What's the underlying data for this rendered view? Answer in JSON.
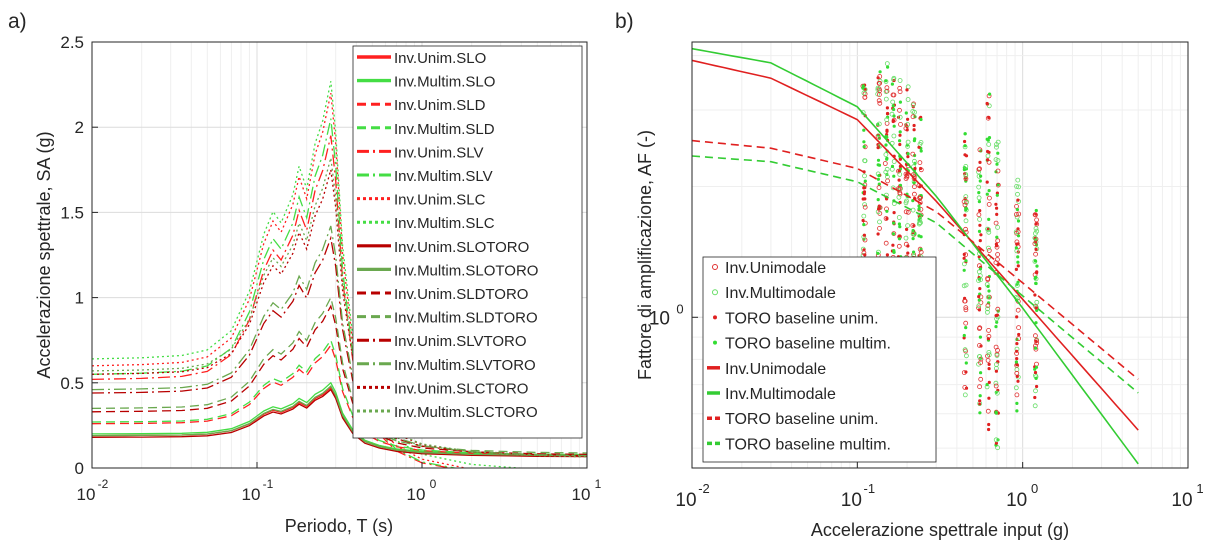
{
  "panel_labels": [
    "a)",
    "b)"
  ],
  "chart_data": [
    {
      "type": "line",
      "xscale": "log",
      "xlim": [
        0.01,
        10
      ],
      "ylim": [
        0,
        2.5
      ],
      "xticks": [
        "10",
        "10",
        "10",
        "10"
      ],
      "xtick_exponents": [
        "-2",
        "-1",
        "0",
        "1"
      ],
      "yticks": [
        "0",
        "0.5",
        "1",
        "1.5",
        "2",
        "2.5"
      ],
      "xlabel": "Periodo, T (s)",
      "ylabel": "Accelerazione spettrale, SA (g)",
      "grid": true,
      "legend_position": "top-right",
      "series": [
        {
          "name": "Inv.Unim.SLO",
          "color": "#ff2020",
          "style": "solid",
          "width": 2.4,
          "pga": 0.19,
          "peak": 0.47
        },
        {
          "name": "Inv.Multim.SLO",
          "color": "#44dd44",
          "style": "solid",
          "width": 2.4,
          "pga": 0.2,
          "peak": 0.5
        },
        {
          "name": "Inv.Unim.SLD",
          "color": "#ff2020",
          "style": "dashed",
          "width": 2.0,
          "pga": 0.26,
          "peak": 0.72
        },
        {
          "name": "Inv.Multim.SLD",
          "color": "#44dd44",
          "style": "dashed",
          "width": 2.0,
          "pga": 0.27,
          "peak": 0.75
        },
        {
          "name": "Inv.Unim.SLV",
          "color": "#ff2020",
          "style": "dashdot",
          "width": 2.0,
          "pga": 0.52,
          "peak": 1.95
        },
        {
          "name": "Inv.Multim.SLV",
          "color": "#44dd44",
          "style": "dashdot",
          "width": 2.0,
          "pga": 0.55,
          "peak": 2.05
        },
        {
          "name": "Inv.Unim.SLC",
          "color": "#ff2020",
          "style": "dotted",
          "width": 2.0,
          "pga": 0.6,
          "peak": 2.2
        },
        {
          "name": "Inv.Multim.SLC",
          "color": "#44dd44",
          "style": "dotted",
          "width": 2.0,
          "pga": 0.64,
          "peak": 2.27
        },
        {
          "name": "Inv.Unim.SLOTORO",
          "color": "#b80000",
          "style": "solid",
          "width": 2.2,
          "pga": 0.18,
          "peak": 0.46
        },
        {
          "name": "Inv.Multim.SLOTORO",
          "color": "#6aa84f",
          "style": "solid",
          "width": 2.2,
          "pga": 0.19,
          "peak": 0.48
        },
        {
          "name": "Inv.Unim.SLDTORO",
          "color": "#b80000",
          "style": "dashed",
          "width": 2.0,
          "pga": 0.33,
          "peak": 0.95
        },
        {
          "name": "Inv.Multim.SLDTORO",
          "color": "#6aa84f",
          "style": "dashed",
          "width": 2.0,
          "pga": 0.35,
          "peak": 1.0
        },
        {
          "name": "Inv.Unim.SLVTORO",
          "color": "#b80000",
          "style": "dashdot",
          "width": 2.0,
          "pga": 0.44,
          "peak": 1.35
        },
        {
          "name": "Inv.Multim.SLVTORO",
          "color": "#6aa84f",
          "style": "dashdot",
          "width": 2.0,
          "pga": 0.46,
          "peak": 1.42
        },
        {
          "name": "Inv.Unim.SLCTORO",
          "color": "#b80000",
          "style": "dotted",
          "width": 2.0,
          "pga": 0.55,
          "peak": 1.75
        },
        {
          "name": "Inv.Multim.SLCTORO",
          "color": "#6aa84f",
          "style": "dotted",
          "width": 2.0,
          "pga": 0.57,
          "peak": 1.82
        }
      ]
    },
    {
      "type": "scatter",
      "xscale": "log",
      "yscale": "log",
      "xlim": [
        0.01,
        10
      ],
      "ylim": [
        0.45,
        4.3
      ],
      "xticks": [
        "10",
        "10",
        "10",
        "10"
      ],
      "xtick_exponents": [
        "-2",
        "-1",
        "0",
        "1"
      ],
      "ytick_label": "10",
      "ytick_exponent": "0",
      "xlabel": "Accelerazione spettrale input (g)",
      "ylabel": "Fattore di amplificazione, AF (-)",
      "grid": true,
      "legend_position": "bottom-left",
      "input_pga_levels": [
        0.11,
        0.135,
        0.15,
        0.165,
        0.18,
        0.2,
        0.22,
        0.24,
        0.45,
        0.55,
        0.62,
        0.7,
        0.93,
        1.2
      ],
      "scatter_series": [
        {
          "name": "Inv.Unimodale",
          "color": "#e03030",
          "marker": "open-circle"
        },
        {
          "name": "Inv.Multimodale",
          "color": "#66dd66",
          "marker": "open-circle"
        },
        {
          "name": "TORO baseline unim.",
          "color": "#e02020",
          "marker": "star"
        },
        {
          "name": "TORO baseline multim.",
          "color": "#33dd33",
          "marker": "star"
        }
      ],
      "fit_series": [
        {
          "name": "Inv.Unimodale",
          "color": "#e02020",
          "style": "solid",
          "points": [
            [
              0.01,
              3.9
            ],
            [
              0.03,
              3.55
            ],
            [
              0.1,
              2.85
            ],
            [
              0.3,
              1.85
            ],
            [
              1.0,
              1.1
            ],
            [
              5.0,
              0.55
            ]
          ]
        },
        {
          "name": "Inv.Multimodale",
          "color": "#33cc33",
          "style": "solid",
          "points": [
            [
              0.01,
              4.15
            ],
            [
              0.03,
              3.85
            ],
            [
              0.1,
              3.05
            ],
            [
              0.3,
              1.9
            ],
            [
              1.0,
              1.05
            ],
            [
              5.0,
              0.46
            ]
          ]
        },
        {
          "name": "TORO baseline unim.",
          "color": "#e02020",
          "style": "dashed",
          "points": [
            [
              0.01,
              2.55
            ],
            [
              0.03,
              2.45
            ],
            [
              0.1,
              2.2
            ],
            [
              0.3,
              1.75
            ],
            [
              1.0,
              1.2
            ],
            [
              5.0,
              0.72
            ]
          ]
        },
        {
          "name": "TORO baseline multim.",
          "color": "#33cc33",
          "style": "dashed",
          "points": [
            [
              0.01,
              2.35
            ],
            [
              0.03,
              2.28
            ],
            [
              0.1,
              2.05
            ],
            [
              0.3,
              1.65
            ],
            [
              1.0,
              1.12
            ],
            [
              5.0,
              0.67
            ]
          ]
        }
      ]
    }
  ]
}
